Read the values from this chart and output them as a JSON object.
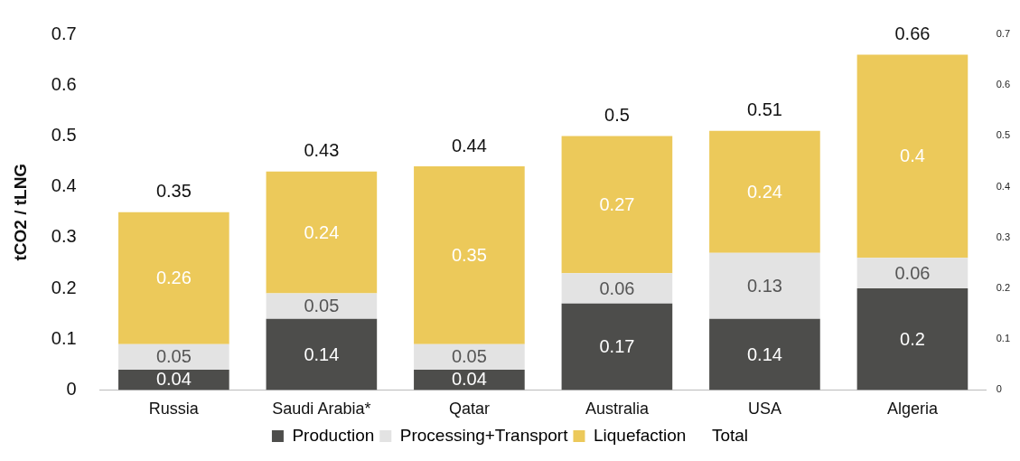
{
  "chart_data": {
    "type": "bar",
    "stacked": true,
    "ylabel": "tCO2 / tLNG",
    "categories": [
      "Russia",
      "Saudi Arabia*",
      "Qatar",
      "Australia",
      "USA",
      "Algeria"
    ],
    "series": [
      {
        "name": "Production",
        "color": "#4d4d4b",
        "values": [
          0.04,
          0.14,
          0.04,
          0.17,
          0.14,
          0.2
        ]
      },
      {
        "name": "Processing+Transport",
        "color": "#e3e3e3",
        "values": [
          0.05,
          0.05,
          0.05,
          0.06,
          0.13,
          0.06
        ]
      },
      {
        "name": "Liquefaction",
        "color": "#ecc95a",
        "values": [
          0.26,
          0.24,
          0.35,
          0.27,
          0.24,
          0.4
        ]
      }
    ],
    "totals": [
      "0.35",
      "0.43",
      "0.44",
      "0.5",
      "0.51",
      "0.66"
    ],
    "annotations": [
      "Total"
    ],
    "ylim": [
      0,
      0.7
    ],
    "yticks": [
      0,
      0.1,
      0.2,
      0.3,
      0.4,
      0.5,
      0.6,
      0.7
    ],
    "y2lim": [
      0,
      0.7
    ],
    "y2ticks": [
      0,
      0.1,
      0.2,
      0.3,
      0.4,
      0.5,
      0.6,
      0.7
    ],
    "data_labels": true,
    "grid": false,
    "legend": "bottom"
  }
}
